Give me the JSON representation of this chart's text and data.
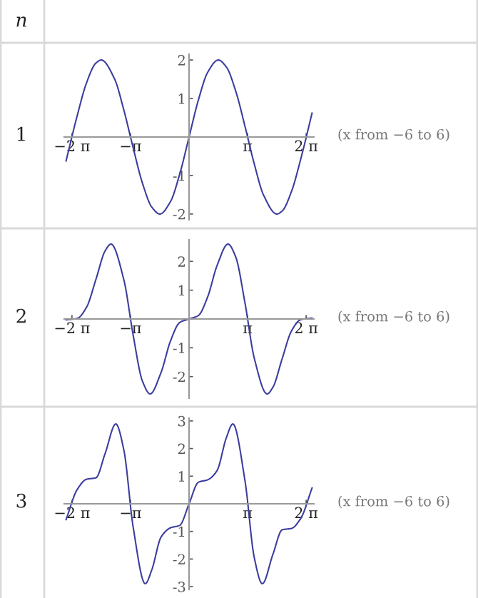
{
  "chart_data": [
    {
      "type": "line",
      "annotations": [
        "1",
        "(x from −6 to 6)",
        "n"
      ],
      "xlim": [
        -6.7,
        6.7
      ],
      "ylim": [
        -2.15,
        2.15
      ],
      "xticks": [
        {
          "value": -6.2832,
          "label": "−2 π"
        },
        {
          "value": -3.1416,
          "label": "−π"
        },
        {
          "value": 3.1416,
          "label": "π"
        },
        {
          "value": 6.2832,
          "label": "2 π"
        }
      ],
      "yticks": [
        -2,
        -1,
        1,
        2
      ],
      "series": [
        {
          "color": "#3d3d9e",
          "x": [
            -6.6,
            -6,
            -5.5,
            -5,
            -4.71,
            -4,
            -3.5,
            -3,
            -2.5,
            -2,
            -1.57,
            -1,
            -0.5,
            0,
            0.5,
            1,
            1.57,
            2,
            2.5,
            3,
            3.5,
            4,
            4.71,
            5,
            5.5,
            6,
            6.6
          ],
          "values": [
            -0.62,
            0.56,
            1.41,
            1.92,
            2,
            1.51,
            0.7,
            -0.28,
            -1.2,
            -1.82,
            -2,
            -1.68,
            -0.96,
            0,
            0.96,
            1.68,
            2,
            1.82,
            1.2,
            0.28,
            -0.7,
            -1.51,
            -2,
            -1.92,
            -1.41,
            -0.56,
            0.62
          ]
        }
      ]
    },
    {
      "type": "line",
      "annotations": [
        "2",
        "(x from −6 to 6)"
      ],
      "xlim": [
        -6.7,
        6.7
      ],
      "ylim": [
        -2.75,
        2.75
      ],
      "xticks": [
        {
          "value": -6.2832,
          "label": "−2 π"
        },
        {
          "value": -3.1416,
          "label": "−π"
        },
        {
          "value": 3.1416,
          "label": "π"
        },
        {
          "value": 6.2832,
          "label": "2 π"
        }
      ],
      "yticks": [
        -2,
        -1,
        1,
        2
      ],
      "series": [
        {
          "color": "#3d3d9e",
          "x": [
            -6.6,
            -6,
            -5.5,
            -5,
            -4.5,
            -4.19,
            -3.5,
            -3,
            -2.5,
            -2.09,
            -1.5,
            -1,
            -0.5,
            0,
            0.5,
            1,
            1.5,
            2.09,
            2.5,
            3,
            3.5,
            4.19,
            4.5,
            5,
            5.5,
            6,
            6.6
          ],
          "values": [
            -0.03,
            0.02,
            0.41,
            1.37,
            2.37,
            2.6,
            1.36,
            -0.56,
            -2.16,
            -2.6,
            -1.85,
            -0.77,
            -0.12,
            0,
            0.12,
            0.77,
            1.85,
            2.6,
            2.16,
            0.56,
            -1.36,
            -2.6,
            -2.37,
            -1.37,
            -0.41,
            -0.02,
            0.03
          ]
        }
      ]
    },
    {
      "type": "line",
      "annotations": [
        "3",
        "(x from −6 to 6)"
      ],
      "xlim": [
        -6.7,
        6.7
      ],
      "ylim": [
        -3.1,
        3.1
      ],
      "xticks": [
        {
          "value": -6.2832,
          "label": "−2 π"
        },
        {
          "value": -3.1416,
          "label": "−π"
        },
        {
          "value": 3.1416,
          "label": "π"
        },
        {
          "value": 6.2832,
          "label": "2 π"
        }
      ],
      "yticks": [
        -3,
        -2,
        -1,
        1,
        2,
        3
      ],
      "series": [
        {
          "color": "#3d3d9e",
          "x": [
            -6.6,
            -6,
            -5.5,
            -5,
            -4.5,
            -3.93,
            -3.5,
            -3,
            -2.35,
            -2,
            -1.5,
            -1,
            -0.5,
            0,
            0.5,
            1,
            1.5,
            2,
            2.35,
            3,
            3.5,
            3.93,
            4.5,
            5,
            5.5,
            6,
            6.6
          ],
          "values": [
            -0.57,
            0.52,
            0.89,
            0.94,
            1.83,
            2.89,
            1.95,
            -0.84,
            -2.89,
            -2.39,
            -1.2,
            -0.87,
            -0.78,
            0,
            0.78,
            0.87,
            1.2,
            2.39,
            2.89,
            0.84,
            -1.95,
            -2.89,
            -1.83,
            -0.94,
            -0.89,
            -0.52,
            0.57
          ]
        }
      ]
    }
  ]
}
